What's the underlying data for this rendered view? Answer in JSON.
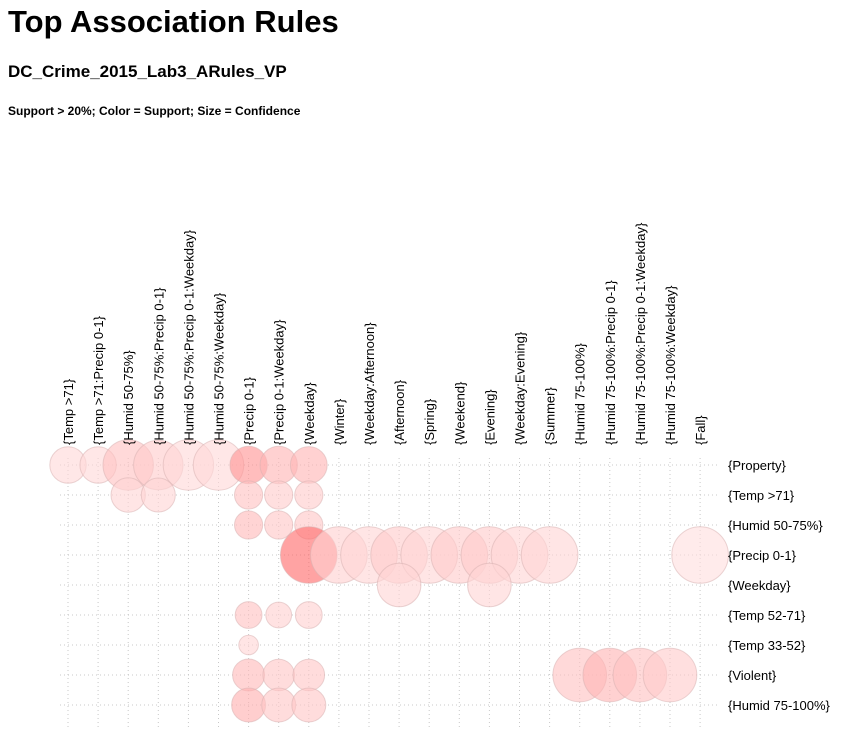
{
  "header": {
    "title": "Top Association Rules",
    "subtitle": "DC_Crime_2015_Lab3_ARules_VP",
    "note": "Support > 20%; Color = Support; Size = Confidence"
  },
  "chart_data": {
    "type": "scatter",
    "encoding": "grouped matrix of association rules: columns = LHS, rows = RHS, color = support, size = confidence",
    "accent_color": "#ff6b6b",
    "grid": true,
    "x_categories": [
      "{Temp >71}",
      "{Temp >71:Precip 0-1}",
      "{Humid 50-75%}",
      "{Humid 50-75%:Precip 0-1}",
      "{Humid 50-75%:Precip 0-1:Weekday}",
      "{Humid 50-75%:Weekday}",
      "{Precip 0-1}",
      "{Precip 0-1:Weekday}",
      "{Weekday}",
      "{Winter}",
      "{Weekday:Afternoon}",
      "{Afternoon}",
      "{Spring}",
      "{Weekend}",
      "{Evening}",
      "{Weekday:Evening}",
      "{Summer}",
      "{Humid 75-100%}",
      "{Humid 75-100%:Precip 0-1}",
      "{Humid 75-100%:Precip 0-1:Weekday}",
      "{Humid 75-100%:Weekday}",
      "{Fall}"
    ],
    "y_categories": [
      "{Property}",
      "{Temp >71}",
      "{Humid 50-75%}",
      "{Precip 0-1}",
      "{Weekday}",
      "{Temp 52-71}",
      "{Temp 33-52}",
      "{Violent}",
      "{Humid 75-100%}"
    ],
    "points": [
      {
        "x": 0,
        "y": 0,
        "support": 0.21,
        "confidence": 0.55
      },
      {
        "x": 1,
        "y": 0,
        "support": 0.21,
        "confidence": 0.55
      },
      {
        "x": 2,
        "y": 0,
        "support": 0.26,
        "confidence": 0.84
      },
      {
        "x": 3,
        "y": 0,
        "support": 0.24,
        "confidence": 0.82
      },
      {
        "x": 4,
        "y": 0,
        "support": 0.21,
        "confidence": 0.84
      },
      {
        "x": 5,
        "y": 0,
        "support": 0.21,
        "confidence": 0.84
      },
      {
        "x": 6,
        "y": 0,
        "support": 0.36,
        "confidence": 0.57
      },
      {
        "x": 7,
        "y": 0,
        "support": 0.29,
        "confidence": 0.57
      },
      {
        "x": 8,
        "y": 0,
        "support": 0.29,
        "confidence": 0.56
      },
      {
        "x": 2,
        "y": 1,
        "support": 0.22,
        "confidence": 0.51
      },
      {
        "x": 3,
        "y": 1,
        "support": 0.22,
        "confidence": 0.5
      },
      {
        "x": 6,
        "y": 1,
        "support": 0.26,
        "confidence": 0.38
      },
      {
        "x": 7,
        "y": 1,
        "support": 0.24,
        "confidence": 0.38
      },
      {
        "x": 8,
        "y": 1,
        "support": 0.24,
        "confidence": 0.38
      },
      {
        "x": 6,
        "y": 2,
        "support": 0.28,
        "confidence": 0.38
      },
      {
        "x": 7,
        "y": 2,
        "support": 0.25,
        "confidence": 0.38
      },
      {
        "x": 8,
        "y": 2,
        "support": 0.25,
        "confidence": 0.38
      },
      {
        "x": 8,
        "y": 3,
        "support": 0.45,
        "confidence": 0.97
      },
      {
        "x": 9,
        "y": 3,
        "support": 0.23,
        "confidence": 0.97
      },
      {
        "x": 10,
        "y": 3,
        "support": 0.22,
        "confidence": 0.97
      },
      {
        "x": 11,
        "y": 3,
        "support": 0.24,
        "confidence": 0.97
      },
      {
        "x": 12,
        "y": 3,
        "support": 0.22,
        "confidence": 0.97
      },
      {
        "x": 13,
        "y": 3,
        "support": 0.24,
        "confidence": 0.97
      },
      {
        "x": 14,
        "y": 3,
        "support": 0.24,
        "confidence": 0.97
      },
      {
        "x": 15,
        "y": 3,
        "support": 0.22,
        "confidence": 0.97
      },
      {
        "x": 16,
        "y": 3,
        "support": 0.22,
        "confidence": 0.97
      },
      {
        "x": 21,
        "y": 3,
        "support": 0.2,
        "confidence": 0.97
      },
      {
        "x": 11,
        "y": 4,
        "support": 0.22,
        "confidence": 0.7
      },
      {
        "x": 14,
        "y": 4,
        "support": 0.22,
        "confidence": 0.7
      },
      {
        "x": 6,
        "y": 5,
        "support": 0.26,
        "confidence": 0.35
      },
      {
        "x": 7,
        "y": 5,
        "support": 0.23,
        "confidence": 0.33
      },
      {
        "x": 8,
        "y": 5,
        "support": 0.23,
        "confidence": 0.35
      },
      {
        "x": 6,
        "y": 6,
        "support": 0.22,
        "confidence": 0.2
      },
      {
        "x": 6,
        "y": 7,
        "support": 0.28,
        "confidence": 0.46
      },
      {
        "x": 7,
        "y": 7,
        "support": 0.25,
        "confidence": 0.45
      },
      {
        "x": 8,
        "y": 7,
        "support": 0.25,
        "confidence": 0.45
      },
      {
        "x": 17,
        "y": 7,
        "support": 0.26,
        "confidence": 0.91
      },
      {
        "x": 18,
        "y": 7,
        "support": 0.29,
        "confidence": 0.91
      },
      {
        "x": 19,
        "y": 7,
        "support": 0.26,
        "confidence": 0.91
      },
      {
        "x": 20,
        "y": 7,
        "support": 0.24,
        "confidence": 0.91
      },
      {
        "x": 6,
        "y": 8,
        "support": 0.3,
        "confidence": 0.5
      },
      {
        "x": 7,
        "y": 8,
        "support": 0.25,
        "confidence": 0.5
      },
      {
        "x": 8,
        "y": 8,
        "support": 0.25,
        "confidence": 0.5
      }
    ]
  }
}
